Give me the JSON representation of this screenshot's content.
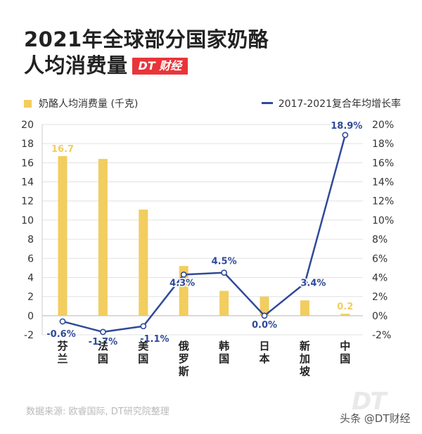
{
  "title_line1": "2021年全球部分国家奶酪",
  "title_line2": "人均消费量",
  "brand": "DT 财经",
  "legend_bar": "奶酪人均消费量 (千克)",
  "legend_line": "2017-2021复合年均增长率",
  "source": "数据来源: 欧睿国际, DT研究院整理",
  "watermark_logo": "DT",
  "watermark_handle": "头条 @DT财经",
  "colors": {
    "bar": "#f2cd5f",
    "line": "#2e4a9a",
    "bar_label": "#f2cd5f",
    "brand": "#e8353a"
  },
  "chart_data": {
    "type": "bar",
    "categories": [
      "芬兰",
      "法国",
      "美国",
      "俄罗斯",
      "韩国",
      "日本",
      "新加坡",
      "中国"
    ],
    "series": [
      {
        "name": "奶酪人均消费量 (千克)",
        "type": "bar",
        "axis": "left",
        "values": [
          16.7,
          16.4,
          11.1,
          5.2,
          2.6,
          2.0,
          1.6,
          0.2
        ]
      },
      {
        "name": "2017-2021复合年均增长率",
        "type": "line",
        "axis": "right",
        "values": [
          -0.6,
          -1.7,
          -1.1,
          4.3,
          4.5,
          0.0,
          3.4,
          18.9
        ]
      }
    ],
    "bar_labels": [
      {
        "index": 0,
        "text": "16.7"
      },
      {
        "index": 7,
        "text": "0.2"
      }
    ],
    "line_labels": [
      "-0.6%",
      "-1.7%",
      "-1.1%",
      "4.3%",
      "4.5%",
      "0.0%",
      "3.4%",
      "18.9%"
    ],
    "y_left": {
      "min": -2,
      "max": 20,
      "ticks": [
        "-2",
        "0",
        "2",
        "4",
        "6",
        "8",
        "10",
        "12",
        "14",
        "16",
        "18",
        "20"
      ]
    },
    "y_right": {
      "min": -2,
      "max": 20,
      "ticks": [
        "-2%",
        "0%",
        "2%",
        "4%",
        "6%",
        "8%",
        "10%",
        "12%",
        "14%",
        "16%",
        "18%",
        "20%"
      ]
    },
    "grid": true
  }
}
